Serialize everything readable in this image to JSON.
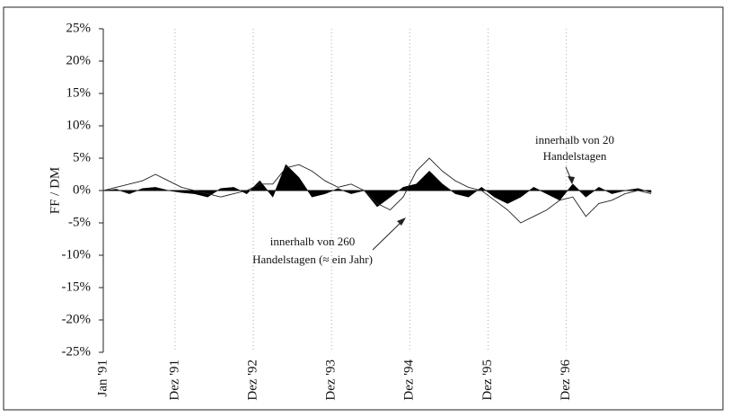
{
  "chart_data": {
    "type": "line",
    "ylabel": "FF / DM",
    "xlim": [
      0,
      84
    ],
    "xticks": [
      {
        "value": 0,
        "label": "Jan '91"
      },
      {
        "value": 11,
        "label": "Dez '91"
      },
      {
        "value": 23,
        "label": "Dez '92"
      },
      {
        "value": 35,
        "label": "Dez '93"
      },
      {
        "value": 47,
        "label": "Dez '94"
      },
      {
        "value": 59,
        "label": "Dez '95"
      },
      {
        "value": 71,
        "label": "Dez '96"
      }
    ],
    "ylim": [
      -25,
      25
    ],
    "yticks": [
      {
        "value": 25,
        "label": "25%"
      },
      {
        "value": 20,
        "label": "20%"
      },
      {
        "value": 15,
        "label": "15%"
      },
      {
        "value": 10,
        "label": "10%"
      },
      {
        "value": 5,
        "label": "5%"
      },
      {
        "value": 0,
        "label": "0%"
      },
      {
        "value": -5,
        "label": "-5%"
      },
      {
        "value": -10,
        "label": "-10%"
      },
      {
        "value": -15,
        "label": "-15%"
      },
      {
        "value": -20,
        "label": "-20%"
      },
      {
        "value": -25,
        "label": "-25%"
      }
    ],
    "grid": true,
    "x": [
      0,
      2,
      4,
      6,
      8,
      10,
      12,
      14,
      16,
      18,
      20,
      22,
      24,
      26,
      28,
      30,
      32,
      34,
      36,
      38,
      40,
      42,
      44,
      46,
      48,
      50,
      52,
      54,
      56,
      58,
      60,
      62,
      64,
      66,
      68,
      70,
      72,
      74,
      76,
      78,
      80,
      82,
      84
    ],
    "series": [
      {
        "color": "#000000",
        "fill": true,
        "values": [
          0,
          0.2,
          -0.5,
          0.3,
          0.5,
          0,
          -0.3,
          -0.5,
          -1,
          0.3,
          0.5,
          -0.5,
          1.5,
          -1,
          4,
          2,
          -1,
          -0.5,
          0.3,
          -0.5,
          0,
          -2.5,
          -1,
          0.5,
          1,
          3,
          1,
          -0.5,
          -1,
          0.5,
          -1,
          -2,
          -1,
          0.5,
          -0.5,
          -1.5,
          1,
          -1,
          0.5,
          -0.5,
          0,
          0.3,
          -0.3
        ]
      },
      {
        "color": "#222222",
        "fill": false,
        "values": [
          0,
          0.5,
          1,
          1.5,
          2.5,
          1.5,
          0.5,
          0,
          -0.5,
          -1,
          -0.5,
          0,
          1,
          1,
          3.5,
          4,
          3,
          1.5,
          0.5,
          1,
          0,
          -2,
          -3,
          -1,
          3,
          5,
          3,
          1.5,
          0.5,
          0,
          -1.5,
          -3,
          -5,
          -4,
          -3,
          -1.5,
          -1,
          -4,
          -2,
          -1.5,
          -0.5,
          0,
          -0.5
        ]
      }
    ],
    "annotations": [
      {
        "lines": [
          "innerhalb von 20",
          "Handelstagen"
        ]
      },
      {
        "lines": [
          "innerhalb von 260",
          "Handelstagen (≈ ein Jahr)"
        ]
      }
    ]
  }
}
